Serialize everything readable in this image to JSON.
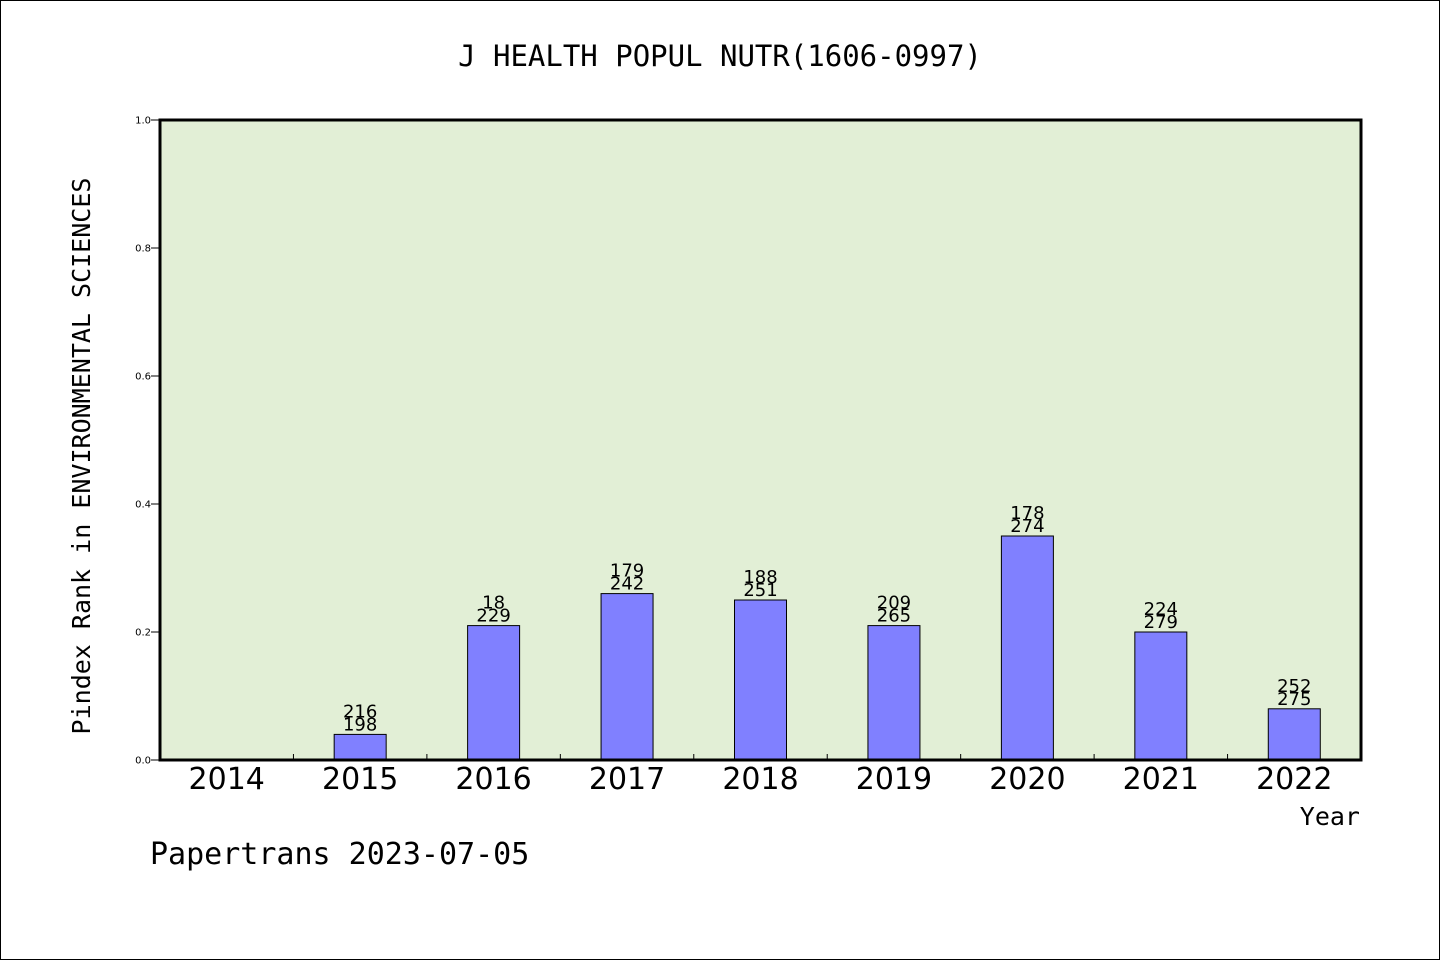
{
  "chart_data": {
    "type": "bar",
    "title": "J HEALTH POPUL NUTR(1606-0997)",
    "xlabel": "Year",
    "ylabel": "Pindex Rank in ENVIRONMENTAL SCIENCES",
    "ylim": [
      0,
      1.0
    ],
    "yticks": [
      "0.0",
      "0.2",
      "0.4",
      "0.6",
      "0.8",
      "1.0"
    ],
    "categories": [
      "2014",
      "2015",
      "2016",
      "2017",
      "2018",
      "2019",
      "2020",
      "2021",
      "2022"
    ],
    "values": [
      null,
      0.04,
      0.21,
      0.26,
      0.25,
      0.21,
      0.35,
      0.2,
      0.08
    ],
    "labels_top": [
      "",
      "216",
      "18",
      "179",
      "188",
      "209",
      "178",
      "224",
      "252"
    ],
    "labels_bottom": [
      "",
      "198",
      "229",
      "242",
      "251",
      "265",
      "274",
      "279",
      "275"
    ],
    "grid": false,
    "colors": {
      "plot_bg": "#e2efd6",
      "bar_fill": "#8080ff",
      "bar_stroke": "#000000"
    }
  },
  "footer": "Papertrans 2023-07-05"
}
